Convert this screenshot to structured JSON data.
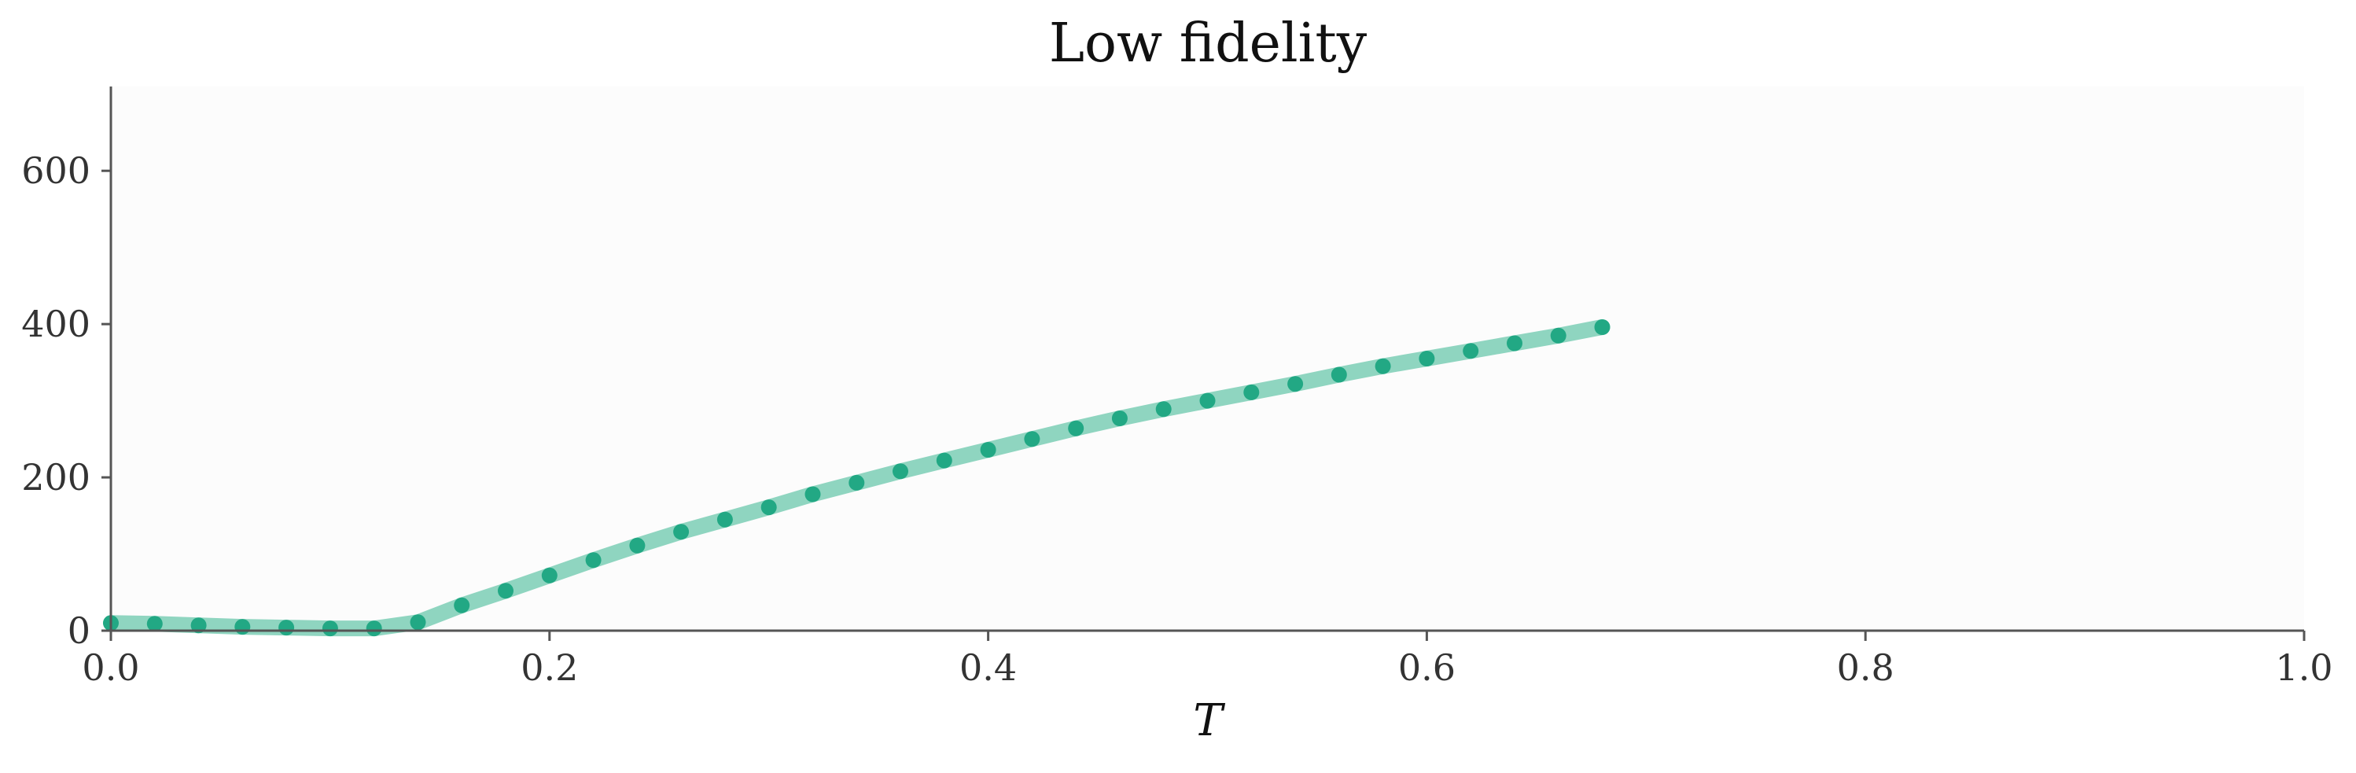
{
  "chart_data": {
    "type": "line",
    "title": "Low fidelity",
    "xlabel": "T",
    "ylabel": "",
    "xlim": [
      0.0,
      1.0
    ],
    "ylim": [
      0,
      710
    ],
    "xticks": [
      "0.0",
      "0.2",
      "0.4",
      "0.6",
      "0.8",
      "1.0"
    ],
    "yticks": [
      "0",
      "200",
      "400",
      "600"
    ],
    "grid": false,
    "legend": "none",
    "colors": {
      "line": "#8fd5c0",
      "marker": "#22a884",
      "plot_background": "#fcfcfc",
      "spine": "#555555"
    },
    "series": [
      {
        "x": [
          0.0,
          0.02,
          0.04,
          0.06,
          0.08,
          0.1,
          0.12,
          0.14,
          0.16,
          0.18,
          0.2,
          0.22,
          0.24,
          0.26,
          0.28,
          0.3,
          0.32,
          0.34,
          0.36,
          0.38,
          0.4,
          0.42,
          0.44,
          0.46,
          0.48,
          0.5,
          0.52,
          0.54,
          0.56,
          0.58,
          0.6,
          0.62,
          0.64,
          0.66,
          0.68
        ],
        "y": [
          10,
          9,
          7,
          5,
          4,
          3,
          3,
          11,
          33,
          52,
          72,
          92,
          111,
          129,
          145,
          161,
          178,
          193,
          208,
          222,
          236,
          250,
          264,
          277,
          289,
          300,
          311,
          322,
          334,
          345,
          355,
          365,
          375,
          385,
          396
        ]
      }
    ]
  }
}
